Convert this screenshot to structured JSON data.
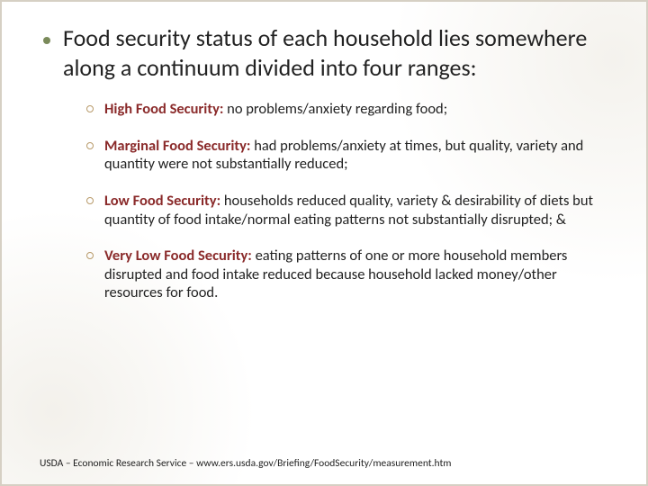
{
  "slide": {
    "background_color": "#ffffff",
    "border_color": "#d6d0c4",
    "disc_color": "#7a8a5a",
    "ring_color": "#b89a6a",
    "term_color": "#8a2a2a",
    "text_color": "#222222",
    "main_fontsize": 26,
    "sub_fontsize": 16.5,
    "footer_fontsize": 11.5
  },
  "main": {
    "text": "Food security status of each household lies somewhere along a continuum divided into four ranges:"
  },
  "items": [
    {
      "term": "High Food Security:",
      "desc": "  no problems/anxiety regarding food;"
    },
    {
      "term": "Marginal Food Security:",
      "desc": "  had problems/anxiety at times, but quality, variety and quantity were not substantially reduced;"
    },
    {
      "term": "Low Food Security:",
      "desc": "  households reduced quality, variety & desirability of diets but quantity of food intake/normal eating patterns not substantially disrupted; &"
    },
    {
      "term": "Very Low Food Security:",
      "desc": "  eating patterns of one or more household members disrupted and food intake reduced because household lacked money/other resources for food."
    }
  ],
  "footer": {
    "text": "USDA – Economic Research Service – www.ers.usda.gov/Briefing/FoodSecurity/measurement.htm"
  }
}
